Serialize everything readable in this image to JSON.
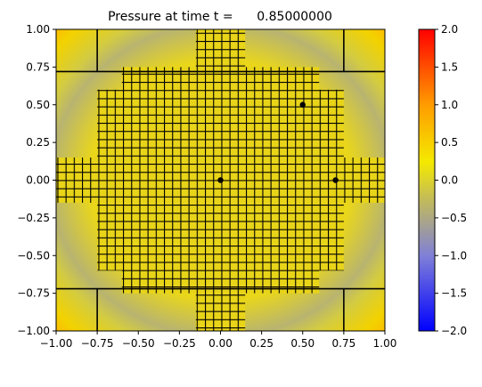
{
  "chart_data": {
    "type": "heatmap",
    "title": "Pressure at time t =      0.85000000",
    "xlabel": "",
    "ylabel": "",
    "xlim": [
      -1.0,
      1.0
    ],
    "ylim": [
      -1.0,
      1.0
    ],
    "x_ticks": [
      "−1.00",
      "−0.75",
      "−0.50",
      "−0.25",
      "0.00",
      "0.25",
      "0.50",
      "0.75",
      "1.00"
    ],
    "y_ticks": [
      "1.00",
      "0.75",
      "0.50",
      "0.25",
      "0.00",
      "−0.25",
      "−0.50",
      "−0.75",
      "−1.00"
    ],
    "x_tick_values": [
      -1.0,
      -0.75,
      -0.5,
      -0.25,
      0.0,
      0.25,
      0.5,
      0.75,
      1.0
    ],
    "y_tick_values": [
      1.0,
      0.75,
      0.5,
      0.25,
      0.0,
      -0.25,
      -0.5,
      -0.75,
      -1.0
    ],
    "colorbar": {
      "range": [
        -2.0,
        2.0
      ],
      "ticks": [
        "2.0",
        "1.5",
        "1.0",
        "0.5",
        "0.0",
        "−0.5",
        "−1.0",
        "−1.5",
        "−2.0"
      ],
      "tick_values": [
        2.0,
        1.5,
        1.0,
        0.5,
        0.0,
        -0.5,
        -1.0,
        -1.5,
        -2.0
      ],
      "colors": [
        "#0000ff",
        "#8a8ad0",
        "#c0c060",
        "#f0e800",
        "#ffa000",
        "#ff0000"
      ]
    },
    "field": {
      "background_value": -0.1,
      "ring_radius": 0.75,
      "ring_value": -0.7,
      "corner_value": 0.45
    },
    "grid_blocks": [
      {
        "x": [
          -0.15,
          0.15
        ],
        "y": [
          -1.0,
          1.0
        ]
      },
      {
        "x": [
          -0.75,
          0.75
        ],
        "y": [
          -0.6,
          0.6
        ]
      },
      {
        "x": [
          -1.0,
          1.0
        ],
        "y": [
          -0.15,
          0.15
        ]
      },
      {
        "x": [
          -0.6,
          0.6
        ],
        "y": [
          -0.75,
          0.75
        ]
      }
    ],
    "coarse_lines": [
      [
        [
          -1.0,
          0.72
        ],
        [
          -0.75,
          0.72
        ]
      ],
      [
        [
          -0.75,
          0.72
        ],
        [
          -0.75,
          1.0
        ]
      ],
      [
        [
          -0.75,
          0.72
        ],
        [
          0.75,
          0.72
        ]
      ],
      [
        [
          0.75,
          0.72
        ],
        [
          0.75,
          1.0
        ]
      ],
      [
        [
          0.75,
          0.72
        ],
        [
          1.0,
          0.72
        ]
      ],
      [
        [
          -1.0,
          -0.72
        ],
        [
          -0.75,
          -0.72
        ]
      ],
      [
        [
          -0.75,
          -0.72
        ],
        [
          -0.75,
          -1.0
        ]
      ],
      [
        [
          -0.75,
          -0.72
        ],
        [
          0.75,
          -0.72
        ]
      ],
      [
        [
          0.75,
          -0.72
        ],
        [
          0.75,
          -1.0
        ]
      ],
      [
        [
          0.75,
          -0.72
        ],
        [
          1.0,
          -0.72
        ]
      ]
    ],
    "markers": [
      {
        "x": 0.0,
        "y": 0.0
      },
      {
        "x": 0.5,
        "y": 0.5
      },
      {
        "x": 0.7,
        "y": 0.0
      }
    ]
  }
}
